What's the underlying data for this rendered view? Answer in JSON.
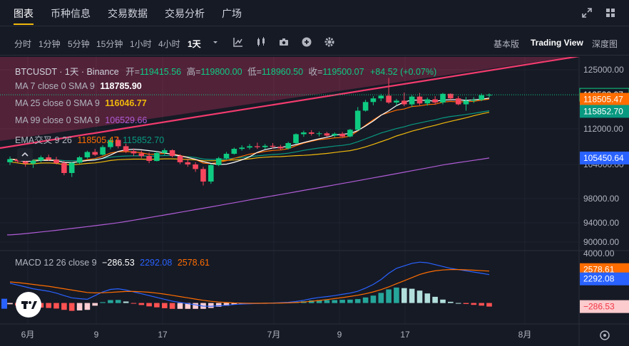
{
  "nav": {
    "tabs": [
      {
        "label": "图表"
      },
      {
        "label": "币种信息"
      },
      {
        "label": "交易数据"
      },
      {
        "label": "交易分析"
      },
      {
        "label": "广场"
      }
    ]
  },
  "toolbar": {
    "intervals": [
      "分时",
      "1分钟",
      "5分钟",
      "15分钟",
      "1小时",
      "4小时",
      "1天"
    ],
    "active_interval": "1天",
    "views": [
      "基本版",
      "Trading View",
      "深度图"
    ],
    "active_view": "Trading View",
    "icons": [
      "chevron-down-icon",
      "indicator-icon",
      "candle-style-icon",
      "camera-icon",
      "add-icon",
      "settings-icon"
    ]
  },
  "legend": {
    "symbol": "BTCUSDT · 1天 · Binance",
    "open_label": "开=",
    "open": "119415.56",
    "high_label": "高=",
    "high": "119800.00",
    "low_label": "低=",
    "low": "118960.50",
    "close_label": "收=",
    "close": "119500.07",
    "change": "+84.52 (+0.07%)",
    "ma7_label": "MA 7 close 0 SMA 9",
    "ma7": "118785.90",
    "ma25_label": "MA 25 close 0 SMA 9",
    "ma25": "116046.77",
    "ma99_label": "MA 99 close 0 SMA 9",
    "ma99": "106529.66",
    "ema_label": "EMA交叉 9 26",
    "ema_fast": "118505.47",
    "ema_slow": "115852.70",
    "macd_label": "MACD 12 26 close 9",
    "macd_hist": "−286.53",
    "macd_line": "2292.08",
    "macd_signal": "2578.61"
  },
  "price_axis": {
    "ticks": [
      "125000.00",
      "112000.00",
      "104000.00",
      "98000.00",
      "94000.00",
      "90000.00"
    ],
    "badges": [
      {
        "text": "119500.07",
        "color": "#ffffff",
        "bg": "#161a25"
      },
      {
        "text": "118505.47",
        "color": "#ffffff",
        "bg": "#ff6d00"
      },
      {
        "text": "115852.70",
        "color": "#ffffff",
        "bg": "#089981"
      },
      {
        "text": "105450.64",
        "color": "#ffffff",
        "bg": "#2962ff"
      }
    ]
  },
  "macd_axis": {
    "ticks": [
      "4000.00"
    ],
    "badges": [
      {
        "text": "2578.61",
        "color": "#ffffff",
        "bg": "#ff6d00"
      },
      {
        "text": "2292.08",
        "color": "#ffffff",
        "bg": "#2962ff"
      },
      {
        "text": "−286.53",
        "color": "#f23645",
        "bg": "#fccbcd"
      }
    ]
  },
  "time_axis": [
    "6月",
    "9",
    "17",
    "7月",
    "9",
    "17",
    "8月"
  ],
  "colors": {
    "up": "#0ecb81",
    "down": "#f6465d",
    "ma7": "#ffffff",
    "ma25": "#f0b90b",
    "ma99": "#b05cd6",
    "ema_fast": "#ff6d00",
    "ema_slow": "#089981",
    "trendline": "#f23b6e",
    "macd": "#2962ff",
    "signal": "#ff6d00"
  },
  "chart_data": {
    "type": "candlestick",
    "candles": [
      [
        104500,
        105800,
        103900,
        105200
      ],
      [
        105200,
        106100,
        104300,
        104700
      ],
      [
        104700,
        105400,
        103600,
        104200
      ],
      [
        104200,
        105000,
        103400,
        104900
      ],
      [
        104900,
        106000,
        104500,
        105600
      ],
      [
        105600,
        106200,
        104800,
        105100
      ],
      [
        105100,
        105700,
        104000,
        104300
      ],
      [
        104300,
        104800,
        102100,
        102500
      ],
      [
        102500,
        104600,
        101800,
        104400
      ],
      [
        104400,
        105900,
        104100,
        105600
      ],
      [
        105600,
        107100,
        105300,
        106800
      ],
      [
        106800,
        107500,
        105900,
        106200
      ],
      [
        106200,
        108300,
        106000,
        107900
      ],
      [
        107900,
        110000,
        107400,
        109500
      ],
      [
        109500,
        110100,
        107600,
        108100
      ],
      [
        108100,
        108700,
        106600,
        107000
      ],
      [
        107000,
        107600,
        105900,
        106500
      ],
      [
        106500,
        107100,
        105400,
        105900
      ],
      [
        105900,
        106700,
        104300,
        104800
      ],
      [
        104800,
        106900,
        104700,
        106600
      ],
      [
        106600,
        107600,
        106100,
        107200
      ],
      [
        107200,
        107400,
        105600,
        105900
      ],
      [
        105900,
        106300,
        104100,
        104500
      ],
      [
        104500,
        105300,
        103600,
        104000
      ],
      [
        104000,
        104500,
        102700,
        103200
      ],
      [
        103200,
        103600,
        100300,
        101000
      ],
      [
        101000,
        104100,
        100600,
        103900
      ],
      [
        103900,
        105700,
        103700,
        105400
      ],
      [
        105400,
        106800,
        105100,
        106400
      ],
      [
        106400,
        107800,
        106200,
        107500
      ],
      [
        107500,
        108300,
        107100,
        107800
      ],
      [
        107800,
        108600,
        107400,
        108100
      ],
      [
        108100,
        108900,
        107500,
        107900
      ],
      [
        107900,
        108600,
        107400,
        108200
      ],
      [
        108200,
        108800,
        107600,
        108000
      ],
      [
        108000,
        108400,
        107300,
        107600
      ],
      [
        107600,
        109100,
        107400,
        108800
      ],
      [
        108800,
        111000,
        108600,
        110800
      ],
      [
        110800,
        111600,
        110200,
        111200
      ],
      [
        111200,
        111700,
        110500,
        110900
      ],
      [
        110900,
        111400,
        110300,
        111000
      ],
      [
        111000,
        111300,
        110200,
        110500
      ],
      [
        110500,
        111200,
        110100,
        110900
      ],
      [
        110900,
        111300,
        110000,
        110300
      ],
      [
        110300,
        112000,
        110100,
        111800
      ],
      [
        111800,
        116800,
        111600,
        116000
      ],
      [
        116000,
        118400,
        115800,
        117900
      ],
      [
        117900,
        119200,
        117200,
        118700
      ],
      [
        118700,
        119700,
        118100,
        119300
      ],
      [
        119300,
        123200,
        117500,
        117800
      ],
      [
        117800,
        118600,
        117100,
        118200
      ],
      [
        118200,
        120000,
        117000,
        117400
      ],
      [
        117400,
        119400,
        116800,
        119100
      ],
      [
        119100,
        119900,
        117200,
        117600
      ],
      [
        117600,
        118900,
        117100,
        118500
      ],
      [
        118500,
        119200,
        117300,
        117800
      ],
      [
        117800,
        119900,
        117400,
        119700
      ],
      [
        119700,
        119800,
        118400,
        118700
      ],
      [
        118700,
        119200,
        117200,
        117400
      ],
      [
        117400,
        119000,
        116000,
        118200
      ],
      [
        118200,
        119000,
        117700,
        118400
      ],
      [
        118400,
        119800,
        118100,
        119415
      ],
      [
        119415,
        119800,
        118960,
        119500
      ]
    ],
    "macd": [
      1600,
      1450,
      1300,
      1150,
      1050,
      950,
      800,
      600,
      420,
      350,
      300,
      600,
      900,
      1100,
      1150,
      1050,
      900,
      750,
      600,
      450,
      300,
      150,
      50,
      -50,
      -150,
      -250,
      -260,
      -220,
      -180,
      -120,
      -80,
      -60,
      -40,
      -20,
      0,
      30,
      60,
      120,
      220,
      350,
      450,
      520,
      600,
      700,
      800,
      950,
      1200,
      1500,
      1900,
      2400,
      2800,
      3000,
      3200,
      3300,
      3250,
      3100,
      2950,
      2800,
      2700,
      2600,
      2500,
      2400,
      2292
    ],
    "signal": [
      1700,
      1650,
      1580,
      1500,
      1420,
      1350,
      1250,
      1150,
      1050,
      950,
      850,
      820,
      830,
      860,
      900,
      930,
      930,
      910,
      870,
      800,
      720,
      620,
      520,
      420,
      320,
      220,
      140,
      80,
      40,
      10,
      -10,
      -20,
      -20,
      -15,
      -10,
      0,
      15,
      40,
      80,
      140,
      210,
      280,
      360,
      440,
      530,
      630,
      750,
      900,
      1080,
      1300,
      1550,
      1800,
      2050,
      2300,
      2480,
      2600,
      2670,
      2700,
      2700,
      2680,
      2650,
      2610,
      2578
    ]
  }
}
